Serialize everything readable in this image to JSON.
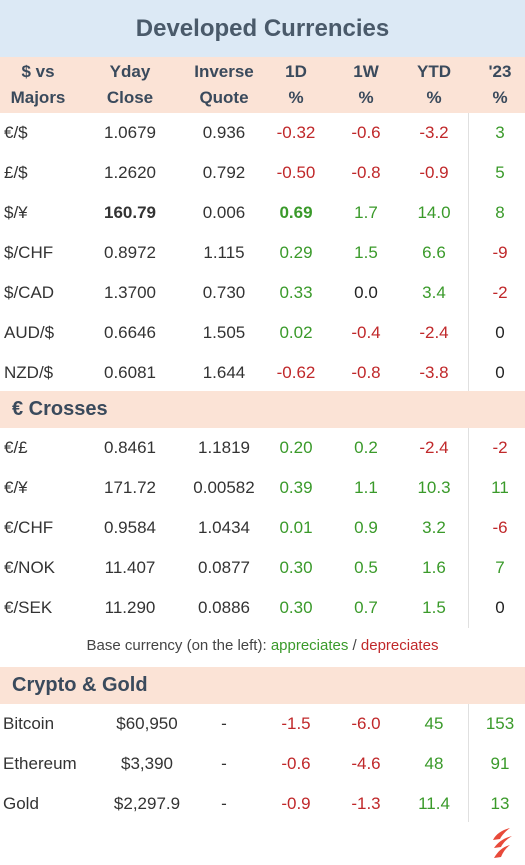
{
  "title": "Developed Currencies",
  "headers": [
    {
      "l1": "$ vs",
      "l2": "Majors"
    },
    {
      "l1": "Yday",
      "l2": "Close"
    },
    {
      "l1": "Inverse",
      "l2": "Quote"
    },
    {
      "l1": "1D",
      "l2": "%"
    },
    {
      "l1": "1W",
      "l2": "%"
    },
    {
      "l1": "YTD",
      "l2": "%"
    },
    {
      "l1": "'23",
      "l2": "%"
    }
  ],
  "majors": [
    {
      "pair": "€/$",
      "close": "1.0679",
      "inverse": "0.936",
      "d1": "-0.32",
      "w1": "-0.6",
      "ytd": "-3.2",
      "y23": "3"
    },
    {
      "pair": "£/$",
      "close": "1.2620",
      "inverse": "0.792",
      "d1": "-0.50",
      "w1": "-0.8",
      "ytd": "-0.9",
      "y23": "5"
    },
    {
      "pair": "$/¥",
      "close": "160.79",
      "inverse": "0.006",
      "d1": "0.69",
      "w1": "1.7",
      "ytd": "14.0",
      "y23": "8"
    },
    {
      "pair": "$/CHF",
      "close": "0.8972",
      "inverse": "1.115",
      "d1": "0.29",
      "w1": "1.5",
      "ytd": "6.6",
      "y23": "-9"
    },
    {
      "pair": "$/CAD",
      "close": "1.3700",
      "inverse": "0.730",
      "d1": "0.33",
      "w1": "0.0",
      "ytd": "3.4",
      "y23": "-2"
    },
    {
      "pair": "AUD/$",
      "close": "0.6646",
      "inverse": "1.505",
      "d1": "0.02",
      "w1": "-0.4",
      "ytd": "-2.4",
      "y23": "0"
    },
    {
      "pair": "NZD/$",
      "close": "0.6081",
      "inverse": "1.644",
      "d1": "-0.62",
      "w1": "-0.8",
      "ytd": "-3.8",
      "y23": "0"
    }
  ],
  "crosses_title": "€ Crosses",
  "crosses": [
    {
      "pair": "€/£",
      "close": "0.8461",
      "inverse": "1.1819",
      "d1": "0.20",
      "w1": "0.2",
      "ytd": "-2.4",
      "y23": "-2"
    },
    {
      "pair": "€/¥",
      "close": "171.72",
      "inverse": "0.00582",
      "d1": "0.39",
      "w1": "1.1",
      "ytd": "10.3",
      "y23": "11"
    },
    {
      "pair": "€/CHF",
      "close": "0.9584",
      "inverse": "1.0434",
      "d1": "0.01",
      "w1": "0.9",
      "ytd": "3.2",
      "y23": "-6"
    },
    {
      "pair": "€/NOK",
      "close": "11.407",
      "inverse": "0.0877",
      "d1": "0.30",
      "w1": "0.5",
      "ytd": "1.6",
      "y23": "7"
    },
    {
      "pair": "€/SEK",
      "close": "11.290",
      "inverse": "0.0886",
      "d1": "0.30",
      "w1": "0.7",
      "ytd": "1.5",
      "y23": "0"
    }
  ],
  "legend": {
    "prefix": "Base currency (on the left):",
    "up": "appreciates",
    "sep": "/",
    "down": "depreciates"
  },
  "crypto_title": "Crypto & Gold",
  "crypto": [
    {
      "pair": "Bitcoin",
      "close": "$60,950",
      "inverse": "-",
      "d1": "-1.5",
      "w1": "-6.0",
      "ytd": "45",
      "y23": "153"
    },
    {
      "pair": "Ethereum",
      "close": "$3,390",
      "inverse": "-",
      "d1": "-0.6",
      "w1": "-4.6",
      "ytd": "48",
      "y23": "91"
    },
    {
      "pair": "Gold",
      "close": "$2,297.9",
      "inverse": "-",
      "d1": "-0.9",
      "w1": "-1.3",
      "ytd": "11.4",
      "y23": "13"
    }
  ],
  "colors": {
    "positive": "#3a9a2a",
    "negative": "#c0282a",
    "header_bg": "#fbe3d6",
    "title_bg": "#dce9f5"
  },
  "logo_icon": "flame-logo-icon"
}
